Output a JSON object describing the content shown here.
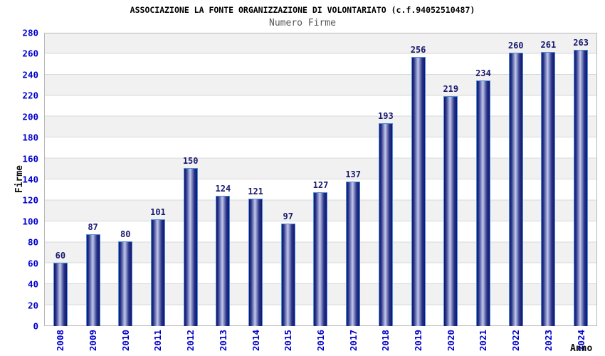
{
  "title": "ASSOCIAZIONE LA FONTE ORGANIZZAZIONE DI VOLONTARIATO (c.f.94052510487)",
  "subtitle": "Numero Firme",
  "chart_data": {
    "type": "bar",
    "title": "ASSOCIAZIONE LA FONTE ORGANIZZAZIONE DI VOLONTARIATO (c.f.94052510487)",
    "subtitle": "Numero Firme",
    "xlabel": "Anno",
    "ylabel": "Firme",
    "categories": [
      "2008",
      "2009",
      "2010",
      "2011",
      "2012",
      "2013",
      "2014",
      "2015",
      "2016",
      "2017",
      "2018",
      "2019",
      "2020",
      "2021",
      "2022",
      "2023",
      "2024"
    ],
    "values": [
      60,
      87,
      80,
      101,
      150,
      124,
      121,
      97,
      127,
      137,
      193,
      256,
      219,
      234,
      260,
      261,
      263
    ],
    "ylim": [
      0,
      280
    ],
    "yticks": [
      0,
      20,
      40,
      60,
      80,
      100,
      120,
      140,
      160,
      180,
      200,
      220,
      240,
      260,
      280
    ],
    "grid": "horizontal-bands-alternating",
    "legend_position": "none",
    "value_labels": "above-bars"
  },
  "colors": {
    "title_color": "#000000",
    "subtitle_color": "#555555",
    "tick_color": "#0000cc",
    "value_color": "#191970",
    "bar_dark": "#10156b",
    "bar_light": "#c3c8e6",
    "bar_border": "#4a90dd",
    "band_gray": "#f1f1f1",
    "grid_line": "#d9d9d9",
    "plot_border": "#b8b8b8"
  }
}
